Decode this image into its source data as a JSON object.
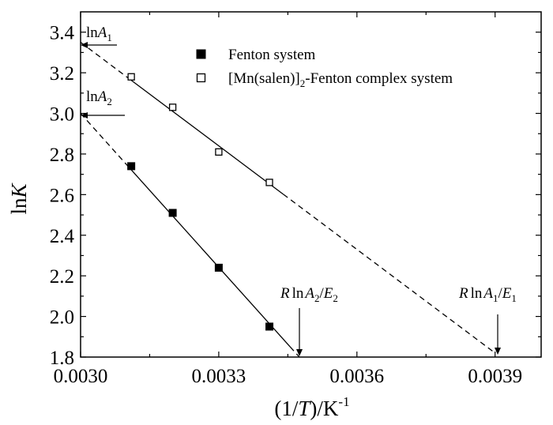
{
  "chart_data": {
    "type": "scatter",
    "xlabel": "(1/T)/K",
    "xlabel_italic_part": "T",
    "xlabel_sup": "-1",
    "ylabel": "lnK",
    "xlim": [
      0.003,
      0.004
    ],
    "ylim": [
      1.8,
      3.5
    ],
    "x_ticks": [
      0.003,
      0.0033,
      0.0036,
      0.0039
    ],
    "x_tick_labels": [
      "0.0030",
      "0.0033",
      "0.0036",
      "0.0039"
    ],
    "y_ticks": [
      1.8,
      2.0,
      2.2,
      2.4,
      2.6,
      2.8,
      3.0,
      3.2,
      3.4
    ],
    "y_tick_labels": [
      "1.8",
      "2.0",
      "2.2",
      "2.4",
      "2.6",
      "2.8",
      "3.0",
      "3.2",
      "3.4"
    ],
    "grid": false,
    "legend_position": "top-right",
    "series": [
      {
        "name": "Fenton system",
        "marker": "filled-square",
        "x": [
          0.00311,
          0.0032,
          0.0033,
          0.00341
        ],
        "y": [
          2.74,
          2.51,
          2.24,
          1.95
        ],
        "fit_line": {
          "x0": 0.003,
          "y0": 3.0,
          "x1": 0.003475,
          "y1": 1.8,
          "solid_from_x": 0.00311,
          "solid_to_x": 0.003455
        }
      },
      {
        "name": "[Mn(salen)]",
        "name_sub": "2",
        "name_suffix": "-Fenton complex system",
        "marker": "open-square",
        "x": [
          0.00311,
          0.0032,
          0.0033,
          0.00341
        ],
        "y": [
          3.18,
          3.03,
          2.81,
          2.66
        ],
        "fit_line": {
          "x0": 0.003,
          "y0": 3.35,
          "x1": 0.0039,
          "y1": 1.82,
          "solid_from_x": 0.00311,
          "solid_to_x": 0.00344
        }
      }
    ],
    "annotations": [
      {
        "id": "lnA1",
        "prefix": "ln",
        "var": "A",
        "sub": "1",
        "target_x": 0.003,
        "target_y": 3.35
      },
      {
        "id": "lnA2",
        "prefix": "ln",
        "var": "A",
        "sub": "2",
        "target_x": 0.003,
        "target_y": 3.0
      },
      {
        "id": "RlnA2E2",
        "r": "R",
        "ln": "ln",
        "a": "A",
        "a_sub": "2",
        "slash": "/",
        "e": "E",
        "e_sub": "2",
        "target_x": 0.003475,
        "target_y": 1.8
      },
      {
        "id": "RlnA1E1",
        "r": "R",
        "ln": "ln",
        "a": "A",
        "a_sub": "1",
        "slash": "/",
        "e": "E",
        "e_sub": "1",
        "target_x": 0.0039,
        "target_y": 1.8
      }
    ]
  }
}
